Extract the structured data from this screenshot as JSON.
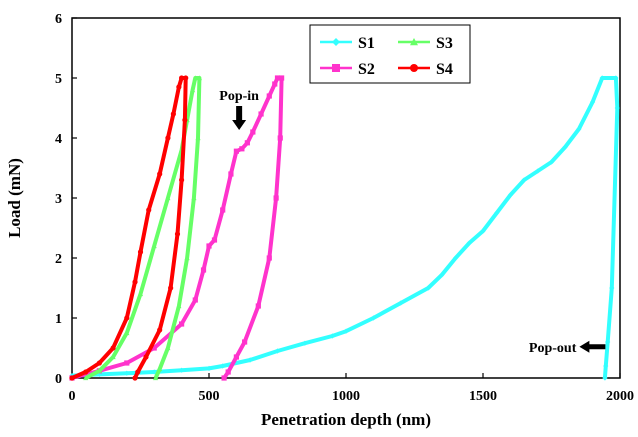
{
  "chart_data": {
    "type": "line",
    "xlabel": "Penetration depth (nm)",
    "ylabel": "Load (mN)",
    "xlim": [
      0,
      2000
    ],
    "ylim": [
      0,
      6
    ],
    "xticks": [
      0,
      500,
      1000,
      1500,
      2000
    ],
    "yticks": [
      0,
      1,
      2,
      3,
      4,
      5,
      6
    ],
    "grid": false,
    "legend_position": "top-center",
    "series": [
      {
        "name": "S1",
        "color": "#33ffff",
        "marker": "diamond",
        "points": [
          [
            0,
            0.04
          ],
          [
            100,
            0.06
          ],
          [
            200,
            0.08
          ],
          [
            300,
            0.1
          ],
          [
            400,
            0.13
          ],
          [
            500,
            0.16
          ],
          [
            550,
            0.2
          ],
          [
            650,
            0.3
          ],
          [
            750,
            0.45
          ],
          [
            850,
            0.58
          ],
          [
            950,
            0.7
          ],
          [
            1000,
            0.78
          ],
          [
            1100,
            1.0
          ],
          [
            1200,
            1.25
          ],
          [
            1300,
            1.5
          ],
          [
            1350,
            1.72
          ],
          [
            1400,
            2.0
          ],
          [
            1450,
            2.25
          ],
          [
            1500,
            2.45
          ],
          [
            1550,
            2.75
          ],
          [
            1600,
            3.05
          ],
          [
            1650,
            3.3
          ],
          [
            1700,
            3.45
          ],
          [
            1750,
            3.6
          ],
          [
            1800,
            3.85
          ],
          [
            1850,
            4.15
          ],
          [
            1900,
            4.6
          ],
          [
            1935,
            5.0
          ],
          [
            1985,
            5.0
          ],
          [
            1990,
            4.5
          ],
          [
            1970,
            1.5
          ],
          [
            1955,
            0.6
          ],
          [
            1948,
            0.2
          ],
          [
            1945,
            0.0
          ]
        ]
      },
      {
        "name": "S2",
        "color": "#ff33cc",
        "marker": "square",
        "points": [
          [
            0,
            0.0
          ],
          [
            100,
            0.12
          ],
          [
            200,
            0.25
          ],
          [
            300,
            0.5
          ],
          [
            400,
            0.9
          ],
          [
            450,
            1.3
          ],
          [
            480,
            1.8
          ],
          [
            500,
            2.2
          ],
          [
            520,
            2.3
          ],
          [
            550,
            2.8
          ],
          [
            580,
            3.4
          ],
          [
            600,
            3.78
          ],
          [
            620,
            3.82
          ],
          [
            640,
            3.92
          ],
          [
            660,
            4.1
          ],
          [
            690,
            4.4
          ],
          [
            720,
            4.7
          ],
          [
            740,
            4.9
          ],
          [
            750,
            5.0
          ],
          [
            765,
            5.0
          ],
          [
            760,
            4.0
          ],
          [
            745,
            3.0
          ],
          [
            720,
            2.0
          ],
          [
            680,
            1.2
          ],
          [
            630,
            0.6
          ],
          [
            600,
            0.35
          ],
          [
            570,
            0.1
          ],
          [
            555,
            0.0
          ]
        ]
      },
      {
        "name": "S3",
        "color": "#66ff66",
        "marker": "triangle",
        "points": [
          [
            50,
            0.0
          ],
          [
            100,
            0.12
          ],
          [
            150,
            0.35
          ],
          [
            200,
            0.75
          ],
          [
            250,
            1.4
          ],
          [
            300,
            2.2
          ],
          [
            350,
            3.0
          ],
          [
            400,
            3.8
          ],
          [
            420,
            4.3
          ],
          [
            440,
            4.8
          ],
          [
            450,
            5.0
          ],
          [
            465,
            5.0
          ],
          [
            460,
            4.0
          ],
          [
            445,
            3.0
          ],
          [
            420,
            2.0
          ],
          [
            390,
            1.2
          ],
          [
            350,
            0.5
          ],
          [
            320,
            0.15
          ],
          [
            305,
            0.0
          ]
        ]
      },
      {
        "name": "S4",
        "color": "#ff0000",
        "marker": "circle",
        "points": [
          [
            0,
            0.0
          ],
          [
            50,
            0.1
          ],
          [
            100,
            0.25
          ],
          [
            150,
            0.5
          ],
          [
            200,
            1.0
          ],
          [
            230,
            1.6
          ],
          [
            250,
            2.1
          ],
          [
            280,
            2.8
          ],
          [
            320,
            3.4
          ],
          [
            350,
            4.0
          ],
          [
            370,
            4.4
          ],
          [
            390,
            4.85
          ],
          [
            400,
            5.0
          ],
          [
            415,
            5.0
          ],
          [
            412,
            4.3
          ],
          [
            400,
            3.3
          ],
          [
            385,
            2.4
          ],
          [
            360,
            1.5
          ],
          [
            320,
            0.8
          ],
          [
            270,
            0.35
          ],
          [
            240,
            0.1
          ],
          [
            230,
            0.0
          ]
        ]
      }
    ],
    "annotations": [
      {
        "text": "Pop-in",
        "x": 610,
        "y": 4.4,
        "arrow": "down"
      },
      {
        "text": "Pop-out",
        "x": 1870,
        "y": 0.52,
        "arrow": "left"
      }
    ]
  }
}
